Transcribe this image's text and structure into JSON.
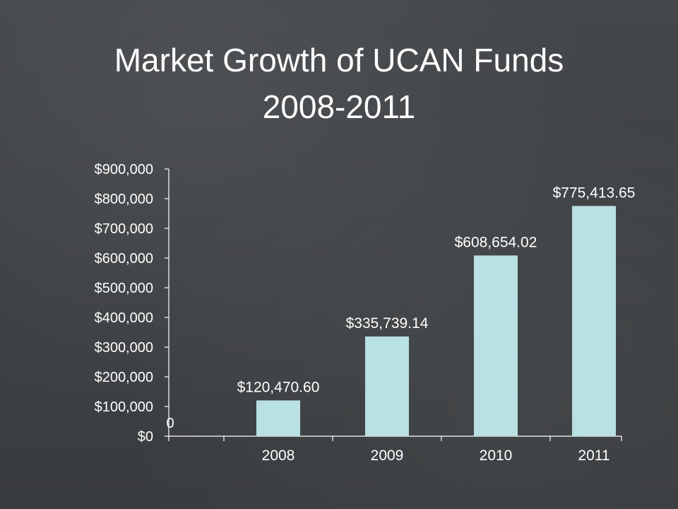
{
  "title": {
    "line1": "Market Growth of UCAN Funds",
    "line2": "2008-2011"
  },
  "chart_data": {
    "type": "bar",
    "categories": [
      "2008",
      "2009",
      "2010",
      "2011"
    ],
    "values": [
      120470.6,
      335739.14,
      608654.02,
      775413.65
    ],
    "data_labels": [
      "$120,470.60",
      "$335,739.14",
      "$608,654.02",
      "$775,413.65"
    ],
    "ylim": [
      0,
      900000
    ],
    "y_ticks": [
      "$0",
      "$100,000",
      "$200,000",
      "$300,000",
      "$400,000",
      "$500,000",
      "$600,000",
      "$700,000",
      "$800,000",
      "$900,000"
    ],
    "y_tick_values": [
      0,
      100000,
      200000,
      300000,
      400000,
      500000,
      600000,
      700000,
      800000,
      900000
    ],
    "annotation": "0",
    "xlabel": "",
    "ylabel": "",
    "bar_color": "#b9e0e2",
    "axis_color": "#ffffff",
    "grid": false
  }
}
